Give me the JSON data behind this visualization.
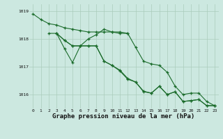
{
  "background_color": "#cce8e0",
  "grid_color": "#aaccbb",
  "line_color": "#1a6b2a",
  "title": "Graphe pression niveau de la mer (hPa)",
  "xlim": [
    -0.5,
    23.5
  ],
  "ylim": [
    1015.5,
    1019.25
  ],
  "yticks": [
    1016,
    1017,
    1018,
    1019
  ],
  "xticks": [
    0,
    1,
    2,
    3,
    4,
    5,
    6,
    7,
    8,
    9,
    10,
    11,
    12,
    13,
    14,
    15,
    16,
    17,
    18,
    19,
    20,
    21,
    22,
    23
  ],
  "xs1": [
    0,
    1,
    2,
    3,
    4,
    5,
    6,
    7,
    8,
    9,
    10,
    11,
    12,
    13,
    14,
    15,
    16,
    17,
    18,
    19,
    20,
    21,
    22,
    23
  ],
  "ys1": [
    1018.9,
    1018.7,
    1018.55,
    1018.5,
    1018.4,
    1018.35,
    1018.3,
    1018.25,
    1018.25,
    1018.25,
    1018.25,
    1018.25,
    1018.2,
    1017.7,
    1017.2,
    1017.1,
    1017.05,
    1016.8,
    1016.3,
    1016.0,
    1016.05,
    1016.05,
    1015.75,
    1015.6
  ],
  "xs2": [
    2,
    3,
    4,
    5,
    6,
    7,
    8,
    9,
    10,
    11,
    12
  ],
  "ys2": [
    1018.2,
    1018.2,
    1017.65,
    1017.15,
    1017.75,
    1018.0,
    1018.15,
    1018.35,
    1018.25,
    1018.2,
    1018.2
  ],
  "xs3": [
    3,
    4,
    5,
    6,
    7,
    8,
    9,
    10,
    11,
    12,
    13,
    14,
    15,
    16,
    17,
    18,
    19,
    20,
    21,
    22,
    23
  ],
  "ys3": [
    1018.2,
    1017.95,
    1017.75,
    1017.75,
    1017.75,
    1017.75,
    1017.2,
    1017.05,
    1016.85,
    1016.55,
    1016.45,
    1016.1,
    1016.05,
    1016.3,
    1016.0,
    1016.1,
    1015.75,
    1015.78,
    1015.82,
    1015.6,
    1015.6
  ],
  "xs4": [
    3,
    4,
    5,
    6,
    7,
    8,
    9,
    10,
    11,
    12,
    13,
    14,
    15,
    16,
    17,
    18,
    19,
    20,
    21,
    22,
    23
  ],
  "ys4": [
    1018.2,
    1017.95,
    1017.75,
    1017.75,
    1017.75,
    1017.75,
    1017.2,
    1017.05,
    1016.88,
    1016.58,
    1016.45,
    1016.12,
    1016.05,
    1016.3,
    1016.0,
    1016.1,
    1015.75,
    1015.78,
    1015.82,
    1015.6,
    1015.6
  ]
}
